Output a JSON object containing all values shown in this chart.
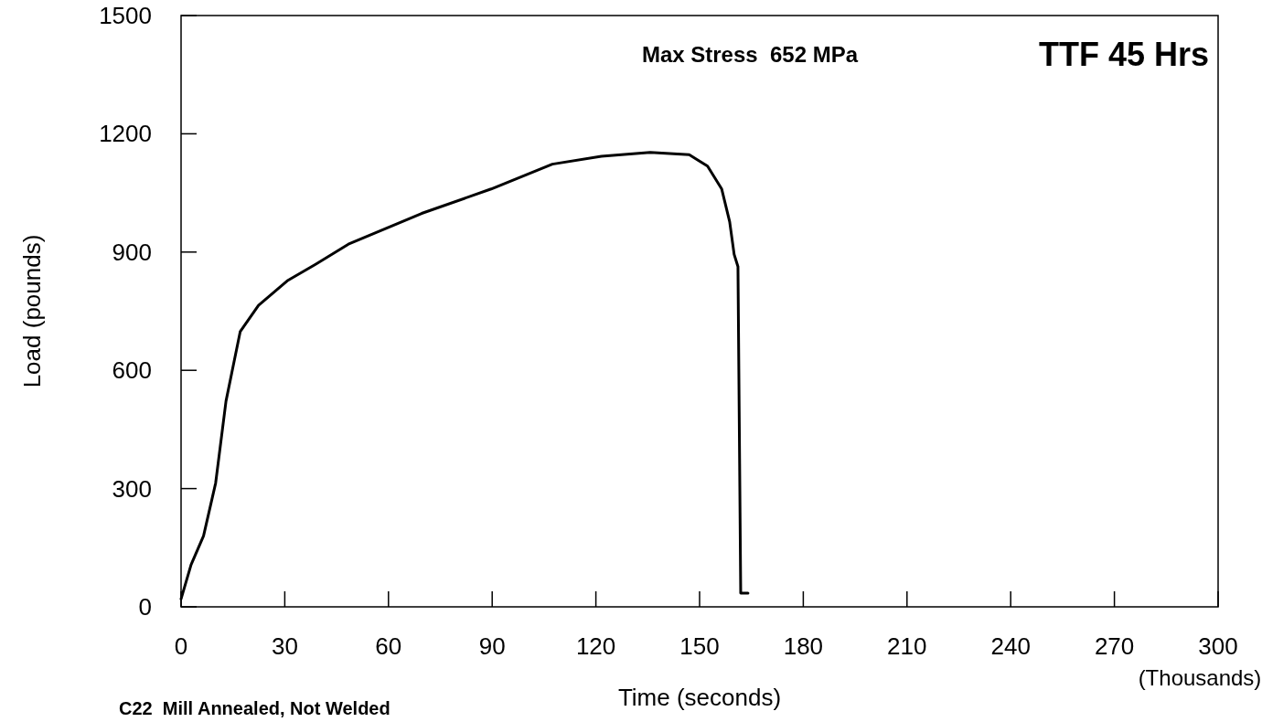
{
  "chart_data": {
    "type": "line",
    "xlabel": "Time (seconds)",
    "ylabel": "Load (pounds)",
    "annotations": [
      "Max Stress  652 MPa",
      "TTF 45 Hrs",
      "(Thousands)",
      "C22  Mill Annealed, Not Welded"
    ],
    "x": [
      0,
      2.9,
      6.5,
      10,
      13,
      17.1,
      22.4,
      30.7,
      38.9,
      48.4,
      69.6,
      89.7,
      107.4,
      121.6,
      135.7,
      147,
      152.3,
      156.4,
      158.7,
      160,
      161.1,
      161.9,
      164
    ],
    "series": [
      {
        "color": "#000000",
        "values": [
          20,
          107,
          180,
          314,
          522,
          698,
          765,
          827,
          869,
          920,
          998,
          1060,
          1123,
          1143,
          1153,
          1147,
          1118,
          1060,
          977,
          894,
          863,
          35,
          35
        ]
      }
    ],
    "xlim": [
      0,
      300
    ],
    "ylim": [
      0,
      1500
    ],
    "xticks": [
      0,
      30,
      60,
      90,
      120,
      150,
      180,
      210,
      240,
      270,
      300
    ],
    "yticks": [
      0,
      300,
      600,
      900,
      1200,
      1500
    ],
    "grid": false,
    "marker": "none",
    "line_style": "solid"
  }
}
